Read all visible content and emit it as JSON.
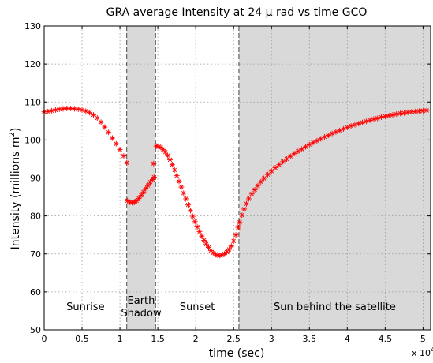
{
  "chart_data": {
    "type": "scatter",
    "title": "GRA average Intensity at 24 μ rad vs time GCO",
    "xlabel": "time (sec)",
    "ylabel": "Intensity (millions m",
    "ylabel_sup": "2",
    "ylabel_end": ")",
    "x_multiplier": "x 10",
    "x_multiplier_exp": "4",
    "xlim": [
      0,
      51000
    ],
    "ylim": [
      50,
      130
    ],
    "x_ticks": [
      0,
      5000,
      10000,
      15000,
      20000,
      25000,
      30000,
      35000,
      40000,
      45000,
      50000
    ],
    "x_tick_labels": [
      "0",
      "0.5",
      "1",
      "1.5",
      "2",
      "2.5",
      "3",
      "3.5",
      "4",
      "4.5",
      "5"
    ],
    "y_ticks": [
      50,
      60,
      70,
      80,
      90,
      100,
      110,
      120,
      130
    ],
    "y_tick_labels": [
      "50",
      "60",
      "70",
      "80",
      "90",
      "100",
      "110",
      "120",
      "130"
    ],
    "grid": true,
    "marker": "+",
    "marker_color": "#ff0000",
    "shade_color": "#d9d9d9",
    "regions": [
      {
        "label_lines": [
          "Sunrise"
        ],
        "x_range": [
          0,
          10900
        ],
        "shaded": false
      },
      {
        "label_lines": [
          "Earth",
          "Shadow"
        ],
        "x_range": [
          10900,
          14700
        ],
        "shaded": true
      },
      {
        "label_lines": [
          "Sunset"
        ],
        "x_range": [
          14700,
          25700
        ],
        "shaded": false
      },
      {
        "label_lines": [
          "Sun behind the satellite"
        ],
        "x_range": [
          25700,
          51000
        ],
        "shaded": true
      }
    ],
    "region_label_y": 56,
    "series": [
      {
        "segments": [
          {
            "points": [
              [
                0,
                107.4
              ],
              [
                500,
                107.5
              ],
              [
                1000,
                107.7
              ],
              [
                1500,
                107.9
              ],
              [
                2000,
                108.1
              ],
              [
                2500,
                108.2
              ],
              [
                3000,
                108.3
              ],
              [
                3500,
                108.3
              ],
              [
                4000,
                108.2
              ],
              [
                4500,
                108.1
              ],
              [
                5000,
                107.9
              ],
              [
                5500,
                107.6
              ],
              [
                6000,
                107.2
              ],
              [
                6500,
                106.6
              ],
              [
                7000,
                105.8
              ],
              [
                7500,
                104.7
              ],
              [
                8000,
                103.4
              ],
              [
                8500,
                102.0
              ],
              [
                9000,
                100.5
              ],
              [
                9500,
                99.0
              ],
              [
                10000,
                97.5
              ],
              [
                10500,
                95.8
              ],
              [
                10900,
                94.0
              ]
            ]
          },
          {
            "points": [
              [
                11000,
                84.0
              ],
              [
                11300,
                83.6
              ],
              [
                11600,
                83.5
              ],
              [
                11900,
                83.6
              ],
              [
                12200,
                84.0
              ],
              [
                12500,
                84.6
              ],
              [
                12800,
                85.4
              ],
              [
                13100,
                86.3
              ],
              [
                13400,
                87.2
              ],
              [
                13700,
                88.0
              ],
              [
                14000,
                88.9
              ],
              [
                14300,
                89.6
              ],
              [
                14500,
                90.2
              ]
            ]
          },
          {
            "points": [
              [
                14450,
                93.8
              ]
            ]
          },
          {
            "points": [
              [
                14800,
                98.4
              ],
              [
                15100,
                98.2
              ],
              [
                15400,
                98.0
              ],
              [
                15700,
                97.5
              ],
              [
                16000,
                96.8
              ],
              [
                16300,
                95.9
              ],
              [
                16600,
                94.8
              ],
              [
                16900,
                93.5
              ],
              [
                17200,
                92.1
              ],
              [
                17500,
                90.6
              ],
              [
                17800,
                89.1
              ],
              [
                18100,
                87.6
              ],
              [
                18400,
                86.0
              ],
              [
                18700,
                84.5
              ],
              [
                19000,
                82.9
              ],
              [
                19300,
                81.4
              ],
              [
                19600,
                79.9
              ],
              [
                19900,
                78.5
              ],
              [
                20200,
                77.1
              ],
              [
                20500,
                75.9
              ],
              [
                20800,
                74.7
              ],
              [
                21100,
                73.6
              ],
              [
                21400,
                72.6
              ],
              [
                21700,
                71.7
              ],
              [
                22000,
                70.9
              ],
              [
                22300,
                70.3
              ],
              [
                22600,
                69.9
              ],
              [
                22900,
                69.6
              ],
              [
                23200,
                69.6
              ],
              [
                23500,
                69.7
              ],
              [
                23800,
                70.0
              ],
              [
                24100,
                70.5
              ],
              [
                24400,
                71.2
              ],
              [
                24700,
                72.1
              ],
              [
                25000,
                73.4
              ],
              [
                25300,
                75.0
              ],
              [
                25600,
                77.0
              ]
            ]
          },
          {
            "points": [
              [
                25800,
                78.3
              ],
              [
                26100,
                80.2
              ],
              [
                26400,
                81.8
              ],
              [
                26700,
                83.2
              ],
              [
                27000,
                84.5
              ],
              [
                27400,
                85.8
              ],
              [
                27800,
                86.9
              ],
              [
                28200,
                88.0
              ],
              [
                28600,
                89.0
              ],
              [
                29000,
                89.9
              ],
              [
                29500,
                90.9
              ],
              [
                30000,
                91.8
              ],
              [
                30500,
                92.7
              ],
              [
                31000,
                93.5
              ],
              [
                31500,
                94.3
              ],
              [
                32000,
                95.0
              ],
              [
                32500,
                95.7
              ],
              [
                33000,
                96.4
              ],
              [
                33500,
                97.0
              ],
              [
                34000,
                97.6
              ],
              [
                34500,
                98.2
              ],
              [
                35000,
                98.8
              ],
              [
                35500,
                99.3
              ],
              [
                36000,
                99.8
              ],
              [
                36500,
                100.3
              ],
              [
                37000,
                100.8
              ],
              [
                37500,
                101.2
              ],
              [
                38000,
                101.7
              ],
              [
                38500,
                102.1
              ],
              [
                39000,
                102.5
              ],
              [
                39500,
                102.9
              ],
              [
                40000,
                103.3
              ],
              [
                40500,
                103.7
              ],
              [
                41000,
                104.0
              ],
              [
                41500,
                104.3
              ],
              [
                42000,
                104.6
              ],
              [
                42500,
                104.9
              ],
              [
                43000,
                105.2
              ],
              [
                43500,
                105.5
              ],
              [
                44000,
                105.7
              ],
              [
                44500,
                106.0
              ],
              [
                45000,
                106.2
              ],
              [
                45500,
                106.4
              ],
              [
                46000,
                106.6
              ],
              [
                46500,
                106.8
              ],
              [
                47000,
                107.0
              ],
              [
                47500,
                107.1
              ],
              [
                48000,
                107.3
              ],
              [
                48500,
                107.4
              ],
              [
                49000,
                107.5
              ],
              [
                49500,
                107.6
              ],
              [
                50000,
                107.7
              ],
              [
                50500,
                107.8
              ]
            ]
          }
        ]
      }
    ]
  }
}
